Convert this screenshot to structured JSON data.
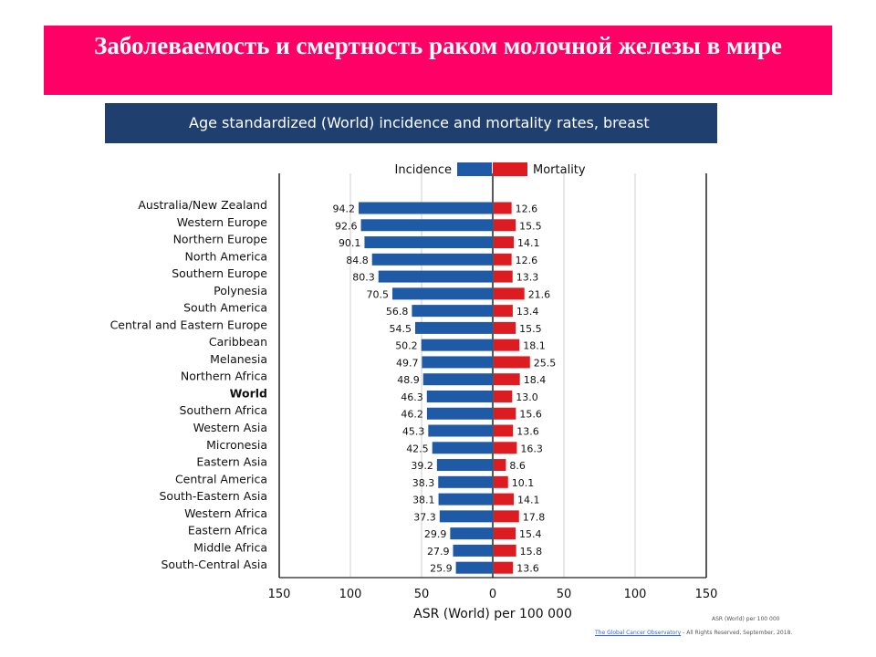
{
  "slide_title": "Заболеваемость и смертность раком молочной железы в мире",
  "chart_banner": "Age standardized (World) incidence and mortality rates, breast",
  "chart_data": {
    "type": "bar",
    "orientation": "horizontal-diverging",
    "categories": [
      "Australia/New Zealand",
      "Western Europe",
      "Northern Europe",
      "North America",
      "Southern Europe",
      "Polynesia",
      "South America",
      "Central and Eastern Europe",
      "Caribbean",
      "Melanesia",
      "Northern Africa",
      "World",
      "Southern Africa",
      "Western Asia",
      "Micronesia",
      "Eastern Asia",
      "Central America",
      "South-Eastern Asia",
      "Western Africa",
      "Eastern Africa",
      "Middle Africa",
      "South-Central Asia"
    ],
    "highlight_category": "World",
    "series": [
      {
        "name": "Incidence",
        "color": "#1f5aa6",
        "values": [
          94.2,
          92.6,
          90.1,
          84.8,
          80.3,
          70.5,
          56.8,
          54.5,
          50.2,
          49.7,
          48.9,
          46.3,
          46.2,
          45.3,
          42.5,
          39.2,
          38.3,
          38.1,
          37.3,
          29.9,
          27.9,
          25.9
        ]
      },
      {
        "name": "Mortality",
        "color": "#dd1c22",
        "values": [
          12.6,
          15.5,
          14.1,
          12.6,
          13.3,
          21.6,
          13.4,
          15.5,
          18.1,
          25.5,
          18.4,
          13.0,
          15.6,
          13.6,
          16.3,
          8.6,
          10.1,
          14.1,
          17.8,
          15.4,
          15.8,
          13.6
        ]
      }
    ],
    "value_labels": {
      "Incidence": [
        "94.2",
        "92.6",
        "90.1",
        "84.8",
        "80.3",
        "70.5",
        "56.8",
        "54.5",
        "50.2",
        "49.7",
        "48.9",
        "46.3",
        "46.2",
        "45.3",
        "42.5",
        "39.2",
        "38.3",
        "38.1",
        "37.3",
        "29.9",
        "27.9",
        "25.9"
      ],
      "Mortality": [
        "12.6",
        "15.5",
        "14.1",
        "12.6",
        "13.3",
        "21.6",
        "13.4",
        "15.5",
        "18.1",
        "25.5",
        "18.4",
        "13.0",
        "15.6",
        "13.6",
        "16.3",
        "8.6",
        "10.1",
        "14.1",
        "17.8",
        "15.4",
        "15.8",
        "13.6"
      ]
    },
    "x_ticks": [
      150,
      100,
      50,
      0,
      50,
      100,
      150
    ],
    "xlim": [
      -150,
      150
    ],
    "xlabel": "ASR (World) per 100 000",
    "grid": true,
    "legend_position": "top-center"
  },
  "footnotes": {
    "asr_note": "ASR (World) per 100 000",
    "source_link": "The Global Cancer Observatory",
    "source_rest": " - All Rights Reserved, September, 2018."
  }
}
